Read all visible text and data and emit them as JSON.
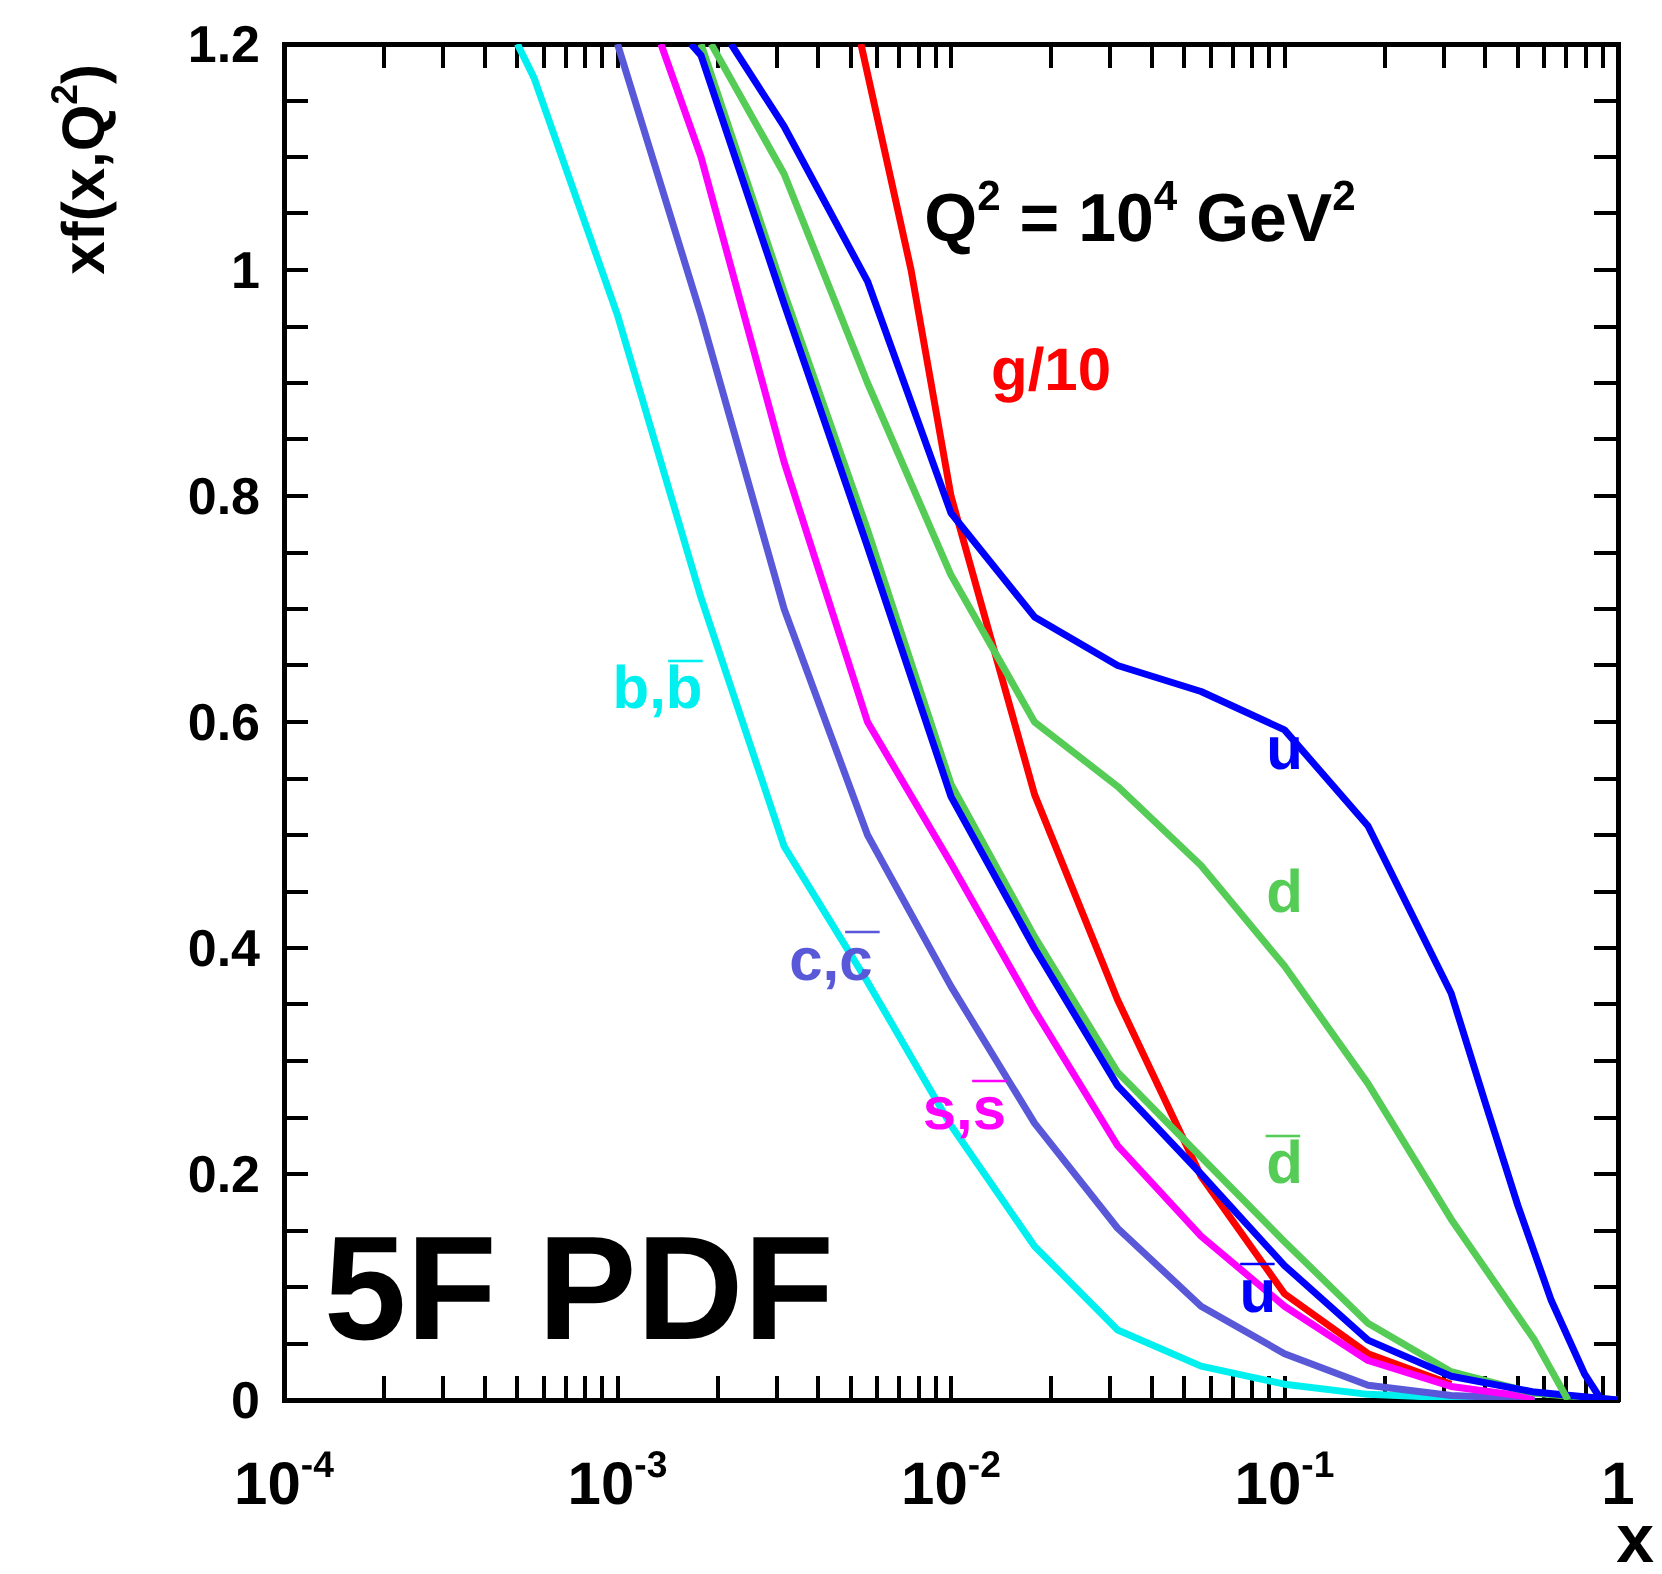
{
  "chart_data": {
    "type": "line",
    "xlabel": "x",
    "ylabel": "xf(x,Q$^{2}$)",
    "log": "x",
    "grid": false,
    "legend": false,
    "annotations": [
      "Q$^{2}$ = 10$^{4}$ GeV$^{2}$",
      "5F PDF"
    ],
    "xlim": [
      0.0001,
      1
    ],
    "ylim": [
      0,
      1.2
    ],
    "xticks": [
      {
        "value": 0.0001,
        "label": "10$^{-4}$"
      },
      {
        "value": 0.0002,
        "label": null
      },
      {
        "value": 0.0003,
        "label": null
      },
      {
        "value": 0.0004,
        "label": null
      },
      {
        "value": 0.0005,
        "label": null
      },
      {
        "value": 0.0006,
        "label": null
      },
      {
        "value": 0.0007,
        "label": null
      },
      {
        "value": 0.0008,
        "label": null
      },
      {
        "value": 0.0009,
        "label": null
      },
      {
        "value": 0.001,
        "label": "10$^{-3}$"
      },
      {
        "value": 0.002,
        "label": null
      },
      {
        "value": 0.003,
        "label": null
      },
      {
        "value": 0.004,
        "label": null
      },
      {
        "value": 0.005,
        "label": null
      },
      {
        "value": 0.006,
        "label": null
      },
      {
        "value": 0.007,
        "label": null
      },
      {
        "value": 0.008,
        "label": null
      },
      {
        "value": 0.009,
        "label": null
      },
      {
        "value": 0.01,
        "label": "10$^{-2}$"
      },
      {
        "value": 0.02,
        "label": null
      },
      {
        "value": 0.03,
        "label": null
      },
      {
        "value": 0.04,
        "label": null
      },
      {
        "value": 0.05,
        "label": null
      },
      {
        "value": 0.06,
        "label": null
      },
      {
        "value": 0.07,
        "label": null
      },
      {
        "value": 0.08,
        "label": null
      },
      {
        "value": 0.09,
        "label": null
      },
      {
        "value": 0.1,
        "label": "10$^{-1}$"
      },
      {
        "value": 0.2,
        "label": null
      },
      {
        "value": 0.3,
        "label": null
      },
      {
        "value": 0.4,
        "label": null
      },
      {
        "value": 0.5,
        "label": null
      },
      {
        "value": 0.6,
        "label": null
      },
      {
        "value": 0.7,
        "label": null
      },
      {
        "value": 0.8,
        "label": null
      },
      {
        "value": 0.9,
        "label": null
      },
      {
        "value": 1,
        "label": "1"
      }
    ],
    "yticks": [
      0,
      {
        "value": 0.05,
        "label": null
      },
      {
        "value": 0.1,
        "label": null
      },
      {
        "value": 0.15,
        "label": null
      },
      0.2,
      {
        "value": 0.25,
        "label": null
      },
      {
        "value": 0.3,
        "label": null
      },
      {
        "value": 0.35,
        "label": null
      },
      0.4,
      {
        "value": 0.45,
        "label": null
      },
      {
        "value": 0.5,
        "label": null
      },
      {
        "value": 0.55,
        "label": null
      },
      0.6,
      {
        "value": 0.65,
        "label": null
      },
      {
        "value": 0.7,
        "label": null
      },
      {
        "value": 0.75,
        "label": null
      },
      0.8,
      {
        "value": 0.85,
        "label": null
      },
      {
        "value": 0.9,
        "label": null
      },
      {
        "value": 0.95,
        "label": null
      },
      1,
      {
        "value": 1.05,
        "label": null
      },
      {
        "value": 1.1,
        "label": null
      },
      {
        "value": 1.15,
        "label": null
      },
      1.2
    ],
    "series": [
      {
        "name": "u",
        "color": "#0000ff",
        "x": [
          0.00219,
          0.00316,
          0.00562,
          0.01,
          0.0178,
          0.0316,
          0.0562,
          0.1,
          0.178,
          0.316,
          0.398,
          0.501,
          0.631,
          0.794,
          0.891
        ],
        "values": [
          1.2,
          1.127,
          0.99,
          0.785,
          0.693,
          0.65,
          0.627,
          0.593,
          0.508,
          0.36,
          0.265,
          0.172,
          0.088,
          0.023,
          0
        ]
      },
      {
        "name": "d",
        "color": "#55cc55",
        "x": [
          0.00191,
          0.00316,
          0.00562,
          0.01,
          0.0178,
          0.0316,
          0.0562,
          0.1,
          0.178,
          0.316,
          0.562,
          0.708
        ],
        "values": [
          1.2,
          1.085,
          0.9,
          0.73,
          0.6,
          0.543,
          0.473,
          0.384,
          0.28,
          0.16,
          0.053,
          0
        ]
      },
      {
        "name": "u̅",
        "color": "#0000ff",
        "x": [
          0.00166,
          0.00178,
          0.00316,
          0.00562,
          0.01,
          0.0178,
          0.0316,
          0.0562,
          0.1,
          0.178,
          0.316,
          0.562,
          1
        ],
        "values": [
          1.2,
          1.19,
          0.97,
          0.755,
          0.534,
          0.4,
          0.278,
          0.2,
          0.119,
          0.053,
          0.021,
          0.007,
          0
        ]
      },
      {
        "name": "d̅",
        "color": "#55cc55",
        "x": [
          0.00178,
          0.00316,
          0.00562,
          0.01,
          0.0178,
          0.0316,
          0.0562,
          0.1,
          0.178,
          0.316,
          0.562,
          1
        ],
        "values": [
          1.2,
          0.98,
          0.77,
          0.545,
          0.41,
          0.29,
          0.215,
          0.14,
          0.068,
          0.025,
          0.006,
          0
        ]
      },
      {
        "name": "s,s̅",
        "color": "#ff00ff",
        "x": [
          0.00135,
          0.00178,
          0.00316,
          0.00562,
          0.01,
          0.0178,
          0.0316,
          0.0562,
          0.1,
          0.178,
          0.316,
          0.562
        ],
        "values": [
          1.2,
          1.1,
          0.83,
          0.6,
          0.475,
          0.345,
          0.225,
          0.145,
          0.083,
          0.035,
          0.012,
          0.002
        ]
      },
      {
        "name": "c,c̅",
        "color": "#5858d8",
        "x": [
          0.001,
          0.00178,
          0.00316,
          0.00562,
          0.01,
          0.0178,
          0.0316,
          0.0562,
          0.1,
          0.178,
          0.316,
          0.562
        ],
        "values": [
          1.2,
          0.96,
          0.7,
          0.5,
          0.366,
          0.245,
          0.152,
          0.083,
          0.041,
          0.013,
          0.004,
          0.001
        ]
      },
      {
        "name": "b,b̅",
        "color": "#00f0f0",
        "x": [
          0.000501,
          0.000562,
          0.001,
          0.00178,
          0.00316,
          0.00562,
          0.01,
          0.0178,
          0.0316,
          0.0562,
          0.1,
          0.178,
          0.316,
          0.562
        ],
        "values": [
          1.2,
          1.17,
          0.96,
          0.71,
          0.49,
          0.37,
          0.243,
          0.136,
          0.062,
          0.03,
          0.014,
          0.005,
          0.002,
          0
        ]
      },
      {
        "name": "g/10",
        "color": "#ff0000",
        "x": [
          0.00537,
          0.00759,
          0.01,
          0.0178,
          0.0316,
          0.0562,
          0.1,
          0.178,
          0.316
        ],
        "values": [
          1.2,
          1.0,
          0.8,
          0.536,
          0.354,
          0.198,
          0.094,
          0.041,
          0.014
        ]
      }
    ]
  }
}
